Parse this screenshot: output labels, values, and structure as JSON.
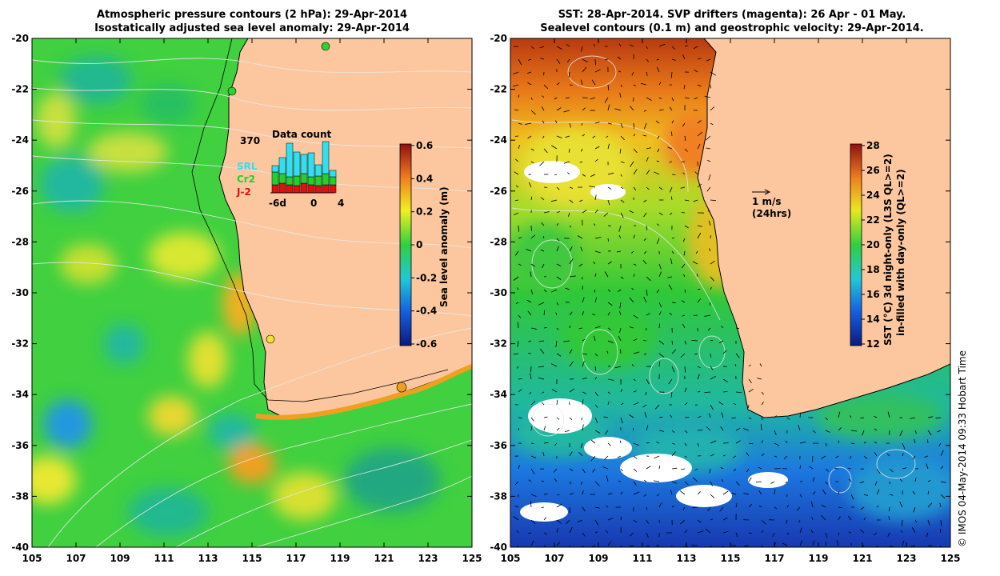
{
  "left_panel": {
    "title_line1": "Atmospheric pressure contours (2 hPa): 29-Apr-2014",
    "title_line2": "Isostatically adjusted sea level anomaly: 29-Apr-2014",
    "colorbar": {
      "label": "Sea level anomaly (m)",
      "ticks": [
        "0.6",
        "0.4",
        "0.2",
        "0",
        "-0.2",
        "-0.4",
        "-0.6"
      ],
      "min": -0.6,
      "max": 0.6
    },
    "inset": {
      "title": "Data count",
      "ymax_label": "370",
      "x_ticks": [
        "-6d",
        "0",
        "4"
      ],
      "legend": [
        {
          "label": "SRL",
          "color": "#30e0f0"
        },
        {
          "label": "Cr2",
          "color": "#20d030"
        },
        {
          "label": "J-2",
          "color": "#e01010"
        }
      ]
    }
  },
  "right_panel": {
    "title_line1": "SST: 28-Apr-2014. SVP drifters (magenta): 26 Apr - 01 May.",
    "title_line2": "Sealevel contours (0.1 m) and geostrophic velocity: 29-Apr-2014.",
    "scale_arrow_label1": "1 m/s",
    "scale_arrow_label2": "(24hrs)",
    "colorbar": {
      "label_line1": "SST (°C)  3d night-only (L3S QL>=2)",
      "label_line2": "in-filled with day-only (QL>=2)",
      "ticks": [
        "28",
        "26",
        "24",
        "22",
        "20",
        "18",
        "16",
        "14",
        "12"
      ],
      "min": 11,
      "max": 29
    }
  },
  "axes": {
    "y_ticks": [
      "-20",
      "-22",
      "-24",
      "-26",
      "-28",
      "-30",
      "-32",
      "-34",
      "-36",
      "-38",
      "-40"
    ],
    "x_ticks": [
      "105",
      "107",
      "109",
      "111",
      "113",
      "115",
      "117",
      "119",
      "121",
      "123",
      "125"
    ],
    "lat_range": [
      -40,
      -20
    ],
    "lon_range": [
      105,
      125
    ]
  },
  "credit": "© IMOS 04-May-2014 09:33 Hobart Time",
  "colors": {
    "land": "#fcc79e",
    "coast": "#000000"
  }
}
